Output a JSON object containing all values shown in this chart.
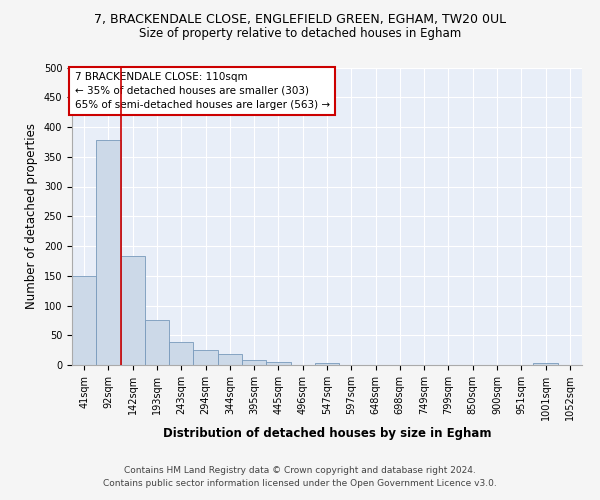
{
  "title1": "7, BRACKENDALE CLOSE, ENGLEFIELD GREEN, EGHAM, TW20 0UL",
  "title2": "Size of property relative to detached houses in Egham",
  "xlabel": "Distribution of detached houses by size in Egham",
  "ylabel": "Number of detached properties",
  "categories": [
    "41sqm",
    "92sqm",
    "142sqm",
    "193sqm",
    "243sqm",
    "294sqm",
    "344sqm",
    "395sqm",
    "445sqm",
    "496sqm",
    "547sqm",
    "597sqm",
    "648sqm",
    "698sqm",
    "749sqm",
    "799sqm",
    "850sqm",
    "900sqm",
    "951sqm",
    "1001sqm",
    "1052sqm"
  ],
  "values": [
    150,
    378,
    184,
    76,
    38,
    25,
    18,
    8,
    5,
    0,
    4,
    0,
    0,
    0,
    0,
    0,
    0,
    0,
    0,
    4,
    0
  ],
  "bar_color": "#ccd9e8",
  "bar_edge_color": "#7799bb",
  "red_line_x": 1.5,
  "annotation_text": "7 BRACKENDALE CLOSE: 110sqm\n← 35% of detached houses are smaller (303)\n65% of semi-detached houses are larger (563) →",
  "annotation_box_color": "#ffffff",
  "annotation_box_edge": "#cc0000",
  "ylim": [
    0,
    500
  ],
  "yticks": [
    0,
    50,
    100,
    150,
    200,
    250,
    300,
    350,
    400,
    450,
    500
  ],
  "footer1": "Contains HM Land Registry data © Crown copyright and database right 2024.",
  "footer2": "Contains public sector information licensed under the Open Government Licence v3.0.",
  "background_color": "#e8eef8",
  "grid_color": "#ffffff",
  "title_fontsize": 9,
  "subtitle_fontsize": 8.5,
  "axis_label_fontsize": 8.5,
  "tick_fontsize": 7,
  "footer_fontsize": 6.5,
  "annot_fontsize": 7.5
}
